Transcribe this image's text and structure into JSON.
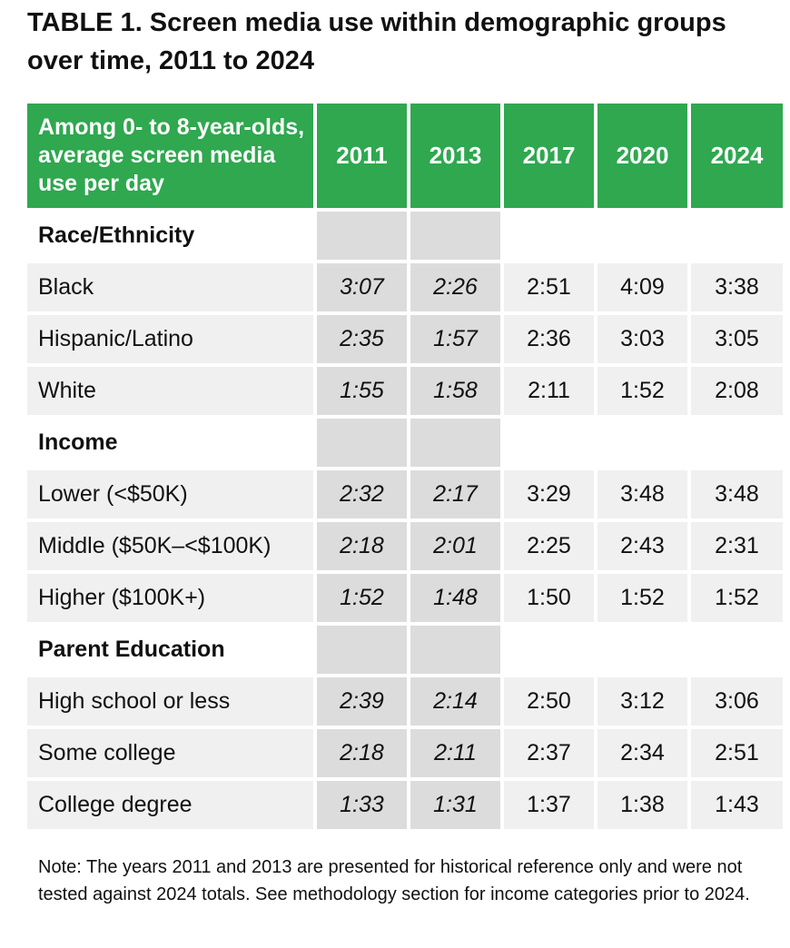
{
  "title": "TABLE 1. Screen media use within demographic groups over time, 2011 to 2024",
  "header": {
    "label": "Among 0- to 8-year-olds, average screen media use per day",
    "years": [
      "2011",
      "2013",
      "2017",
      "2020",
      "2024"
    ]
  },
  "groups": [
    {
      "label": "Race/Ethnicity",
      "rows": [
        {
          "label": "Black",
          "values": [
            "3:07",
            "2:26",
            "2:51",
            "4:09",
            "3:38"
          ]
        },
        {
          "label": "Hispanic/Latino",
          "values": [
            "2:35",
            "1:57",
            "2:36",
            "3:03",
            "3:05"
          ]
        },
        {
          "label": "White",
          "values": [
            "1:55",
            "1:58",
            "2:11",
            "1:52",
            "2:08"
          ]
        }
      ]
    },
    {
      "label": "Income",
      "rows": [
        {
          "label": "Lower (<$50K)",
          "values": [
            "2:32",
            "2:17",
            "3:29",
            "3:48",
            "3:48"
          ]
        },
        {
          "label": "Middle ($50K–<$100K)",
          "values": [
            "2:18",
            "2:01",
            "2:25",
            "2:43",
            "2:31"
          ]
        },
        {
          "label": "Higher ($100K+)",
          "values": [
            "1:52",
            "1:48",
            "1:50",
            "1:52",
            "1:52"
          ]
        }
      ]
    },
    {
      "label": "Parent Education",
      "rows": [
        {
          "label": "High school or less",
          "values": [
            "2:39",
            "2:14",
            "2:50",
            "3:12",
            "3:06"
          ]
        },
        {
          "label": "Some college",
          "values": [
            "2:18",
            "2:11",
            "2:37",
            "2:34",
            "2:51"
          ]
        },
        {
          "label": "College degree",
          "values": [
            "1:33",
            "1:31",
            "1:37",
            "1:38",
            "1:43"
          ]
        }
      ]
    }
  ],
  "note": "Note: The years 2011 and 2013 are presented for historical reference only and were not tested against 2024 totals. See methodology section for income categories prior to 2024.",
  "colors": {
    "header_bg": "#2fa84f",
    "row_bg": "#f0f0f0",
    "historical_bg": "#dcdcdc"
  }
}
